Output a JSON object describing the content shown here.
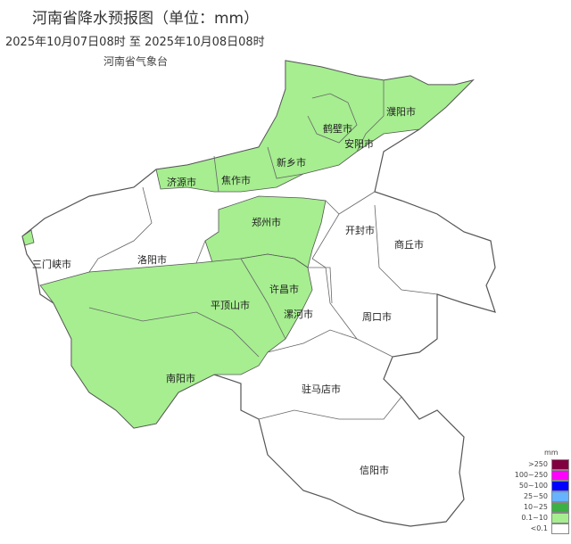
{
  "header": {
    "title": "河南省降水预报图（单位：mm）",
    "period": "2025年10月07日08时  至  2025年10月08日08时",
    "issuer": "河南省气象台"
  },
  "cities": [
    {
      "name": "濮阳市",
      "rain": "0.1~10"
    },
    {
      "name": "鹤壁市",
      "rain": "0.1~10"
    },
    {
      "name": "安阳市",
      "rain": "0.1~10"
    },
    {
      "name": "新乡市",
      "rain": "0.1~10"
    },
    {
      "name": "济源市",
      "rain": "0.1~10"
    },
    {
      "name": "焦作市",
      "rain": "0.1~10"
    },
    {
      "name": "郑州市",
      "rain": "0.1~10"
    },
    {
      "name": "开封市",
      "rain": "<0.1"
    },
    {
      "name": "商丘市",
      "rain": "<0.1"
    },
    {
      "name": "三门峡市",
      "rain": "<0.1"
    },
    {
      "name": "洛阳市",
      "rain": "<0.1"
    },
    {
      "name": "许昌市",
      "rain": "0.1~10"
    },
    {
      "name": "平顶山市",
      "rain": "0.1~10"
    },
    {
      "name": "漯河市",
      "rain": "0.1~10"
    },
    {
      "name": "周口市",
      "rain": "<0.1"
    },
    {
      "name": "南阳市",
      "rain": "0.1~10"
    },
    {
      "name": "驻马店市",
      "rain": "<0.1"
    },
    {
      "name": "信阳市",
      "rain": "<0.1"
    }
  ],
  "legend": {
    "unit": "mm",
    "items": [
      {
        "label": ">250",
        "color": "#800040"
      },
      {
        "label": "100~250",
        "color": "#ff00ff"
      },
      {
        "label": "50~100",
        "color": "#0000ff"
      },
      {
        "label": "25~50",
        "color": "#66b3ff"
      },
      {
        "label": "10~25",
        "color": "#3cb043"
      },
      {
        "label": "0.1~10",
        "color": "#a6ee90"
      },
      {
        "label": "<0.1",
        "color": "#ffffff"
      }
    ]
  }
}
